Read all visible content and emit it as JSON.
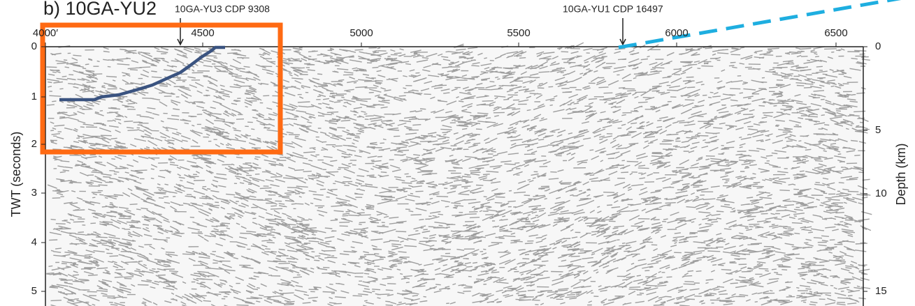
{
  "figure": {
    "title": "b) 10GA-YU2",
    "annotations": [
      "10GA-YU3 CDP 9308",
      "10GA-YU1 CDP 16497"
    ],
    "top_axis": {
      "ticks": [
        "4000′",
        "4500",
        "5000",
        "5500",
        "6000",
        "6500"
      ]
    },
    "left_axis": {
      "label": "TWT (seconds)",
      "ticks": [
        "0",
        "1",
        "2",
        "3",
        "4",
        "5"
      ]
    },
    "right_axis": {
      "label": "Depth (km)",
      "ticks": [
        "0",
        "5",
        "10",
        "15"
      ]
    }
  }
}
